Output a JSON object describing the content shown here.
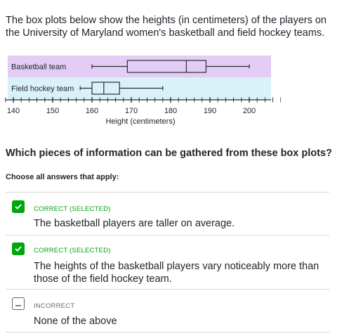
{
  "question": {
    "text": "The box plots below show the heights (in centimeters) of the players on the University of Maryland women's basketball and field hockey teams."
  },
  "colors": {
    "basketball_band": "#e3cdf4",
    "field_hockey_band": "#d9f1f8",
    "box_stroke": "#2a2d33",
    "correct": "#00a60e"
  },
  "chart_data": {
    "type": "boxplot",
    "xlabel": "Height (centimeters)",
    "xlim": [
      138,
      210
    ],
    "tick_labels": [
      140,
      150,
      160,
      170,
      180,
      190,
      200
    ],
    "minor_tick_step": 2,
    "series": [
      {
        "name": "Basketball team",
        "min": 160,
        "q1": 169,
        "median": 184,
        "q3": 189,
        "max": 200
      },
      {
        "name": "Field hockey team",
        "min": 157,
        "q1": 160,
        "median": 163,
        "q3": 167,
        "max": 178
      }
    ]
  },
  "prompt": "Which pieces of information can be gathered from these box plots?",
  "instruction": "Choose all answers that apply:",
  "choices": [
    {
      "status": "CORRECT (SELECTED)",
      "text": "The basketball players are taller on average.",
      "checked": true
    },
    {
      "status": "CORRECT (SELECTED)",
      "text": "The heights of the basketball players vary noticeably more than those of the field hockey team.",
      "checked": true
    },
    {
      "status": "INCORRECT",
      "text": "None of the above",
      "checked": false
    }
  ]
}
